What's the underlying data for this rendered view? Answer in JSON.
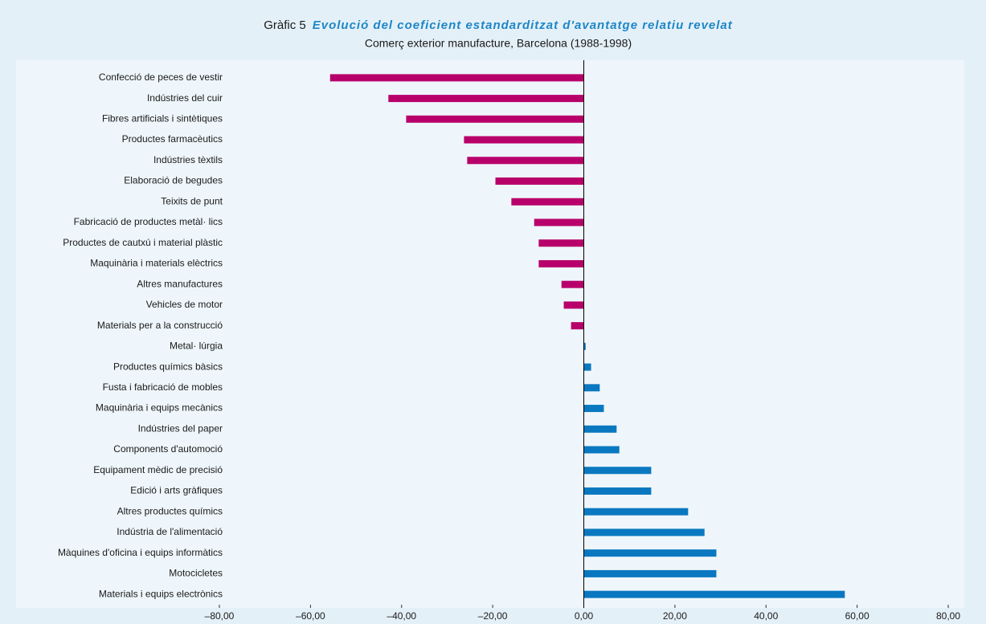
{
  "chart_data": {
    "type": "hbar",
    "title_prefix": "Gràfic 5",
    "title": "Evolució del coeficient estandarditzat d'avantatge relatiu revelat",
    "subtitle": "Comerç exterior manufacture, Barcelona (1988-1998)",
    "categories": [
      "Confecció de peces de vestir",
      "Indústries del cuir",
      "Fibres artificials i sintètiques",
      "Productes farmacèutics",
      "Indústries tèxtils",
      "Elaboració de begudes",
      "Teixits de punt",
      "Fabricació de productes metàl· lics",
      "Productes de cautxú i material plàstic",
      "Maquinària i materials elèctrics",
      "Altres manufactures",
      "Vehicles de motor",
      "Materials per a la construcció",
      "Metal· lúrgia",
      "Productes químics bàsics",
      "Fusta i fabricació de mobles",
      "Maquinària i equips mecànics",
      "Indústries del paper",
      "Components d'automoció",
      "Equipament mèdic de precisió",
      "Edició i arts gràfiques",
      "Altres productes químics",
      "Indústria de l'alimentació",
      "Màquines d'oficina i equips informàtics",
      "Motocicletes",
      "Materials i equips electrònics"
    ],
    "values": [
      -55.7,
      -42.9,
      -39.0,
      -26.3,
      -25.6,
      -19.4,
      -15.9,
      -10.9,
      -9.9,
      -9.9,
      -4.9,
      -4.4,
      -2.8,
      0.4,
      1.6,
      3.5,
      4.4,
      7.2,
      7.8,
      14.8,
      14.8,
      22.9,
      26.5,
      29.1,
      29.1,
      57.3
    ],
    "negative_color": "#b8006a",
    "positive_color": "#0a78c0",
    "xlim": [
      -80,
      80
    ],
    "xticks": [
      {
        "value": -80,
        "label": "–80,00"
      },
      {
        "value": -60,
        "label": "–60,00"
      },
      {
        "value": -40,
        "label": "–40,00"
      },
      {
        "value": -20,
        "label": "–20,00"
      },
      {
        "value": 0,
        "label": "0,00"
      },
      {
        "value": 20,
        "label": "20,00"
      },
      {
        "value": 40,
        "label": "40,00"
      },
      {
        "value": 60,
        "label": "60,00"
      },
      {
        "value": 80,
        "label": "80,00"
      }
    ]
  }
}
